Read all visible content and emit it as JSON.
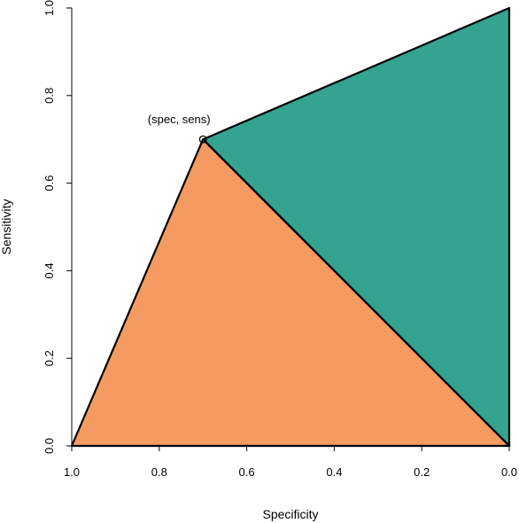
{
  "chart_data": {
    "type": "area",
    "xlabel": "Specificity",
    "ylabel": "Sensitivity",
    "x_reversed": true,
    "xlim": [
      1.0,
      0.0
    ],
    "ylim": [
      0.0,
      1.0
    ],
    "xticks": [
      "1.0",
      "0.8",
      "0.6",
      "0.4",
      "0.2",
      "0.0"
    ],
    "xtick_values": [
      1.0,
      0.8,
      0.6,
      0.4,
      0.2,
      0.0
    ],
    "yticks": [
      "0.0",
      "0.2",
      "0.4",
      "0.6",
      "0.8",
      "1.0"
    ],
    "ytick_values": [
      0.0,
      0.2,
      0.4,
      0.6,
      0.8,
      1.0
    ],
    "point": {
      "spec": 0.7,
      "sens": 0.7,
      "label": "(spec, sens)"
    },
    "regions": [
      {
        "vertices": [
          [
            1.0,
            0.0
          ],
          [
            0.7,
            0.7
          ],
          [
            0.0,
            0.0
          ]
        ],
        "color": "#f59a61"
      },
      {
        "vertices": [
          [
            0.7,
            0.7
          ],
          [
            0.0,
            1.0
          ],
          [
            0.0,
            0.0
          ]
        ],
        "color": "#34a38f"
      }
    ],
    "grid": false
  }
}
